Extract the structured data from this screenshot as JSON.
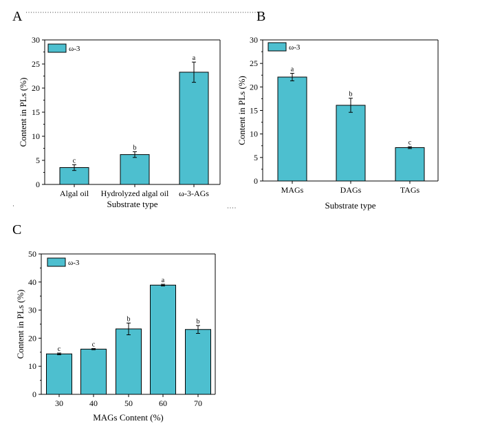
{
  "colors": {
    "bar": "#4dbfcf",
    "axis": "#000000",
    "separator": "#9a9a9a"
  },
  "chart_data": [
    {
      "panel": "A",
      "type": "bar",
      "legend": [
        "ω-3"
      ],
      "categories": [
        "Algal oil",
        "Hydrolyzed algal oil",
        "ω-3-AGs"
      ],
      "series": [
        {
          "name": "ω-3",
          "values": [
            3.5,
            6.2,
            23.3
          ],
          "errors": [
            0.6,
            0.6,
            2.1
          ],
          "labels": [
            "c",
            "b",
            "a"
          ]
        }
      ],
      "xlabel": "Substrate type",
      "ylabel": "Content in PLs (%)",
      "ylim": [
        0,
        30
      ],
      "yticks": [
        0,
        5,
        10,
        15,
        20,
        25,
        30
      ]
    },
    {
      "panel": "B",
      "type": "bar",
      "legend": [
        "ω-3"
      ],
      "categories": [
        "MAGs",
        "DAGs",
        "TAGs"
      ],
      "series": [
        {
          "name": "ω-3",
          "values": [
            22.1,
            16.1,
            7.1
          ],
          "errors": [
            0.8,
            1.5,
            0.2
          ],
          "labels": [
            "a",
            "b",
            "c"
          ]
        }
      ],
      "xlabel": "Substrate type",
      "ylabel": "Content in PLs (%)",
      "ylim": [
        0,
        30
      ],
      "yticks": [
        0,
        5,
        10,
        15,
        20,
        25,
        30
      ]
    },
    {
      "panel": "C",
      "type": "bar",
      "legend": [
        "ω-3"
      ],
      "categories": [
        "30",
        "40",
        "50",
        "60",
        "70"
      ],
      "series": [
        {
          "name": "ω-3",
          "values": [
            14.4,
            16.1,
            23.3,
            38.9,
            23.1
          ],
          "errors": [
            0.3,
            0.2,
            2.1,
            0.3,
            1.4
          ],
          "labels": [
            "c",
            "c",
            "b",
            "a",
            "b"
          ]
        }
      ],
      "xlabel": "MAGs Content (%)",
      "ylabel": "Content in PLs (%)",
      "ylim": [
        0,
        50
      ],
      "yticks": [
        0,
        10,
        20,
        30,
        40,
        50
      ]
    }
  ]
}
